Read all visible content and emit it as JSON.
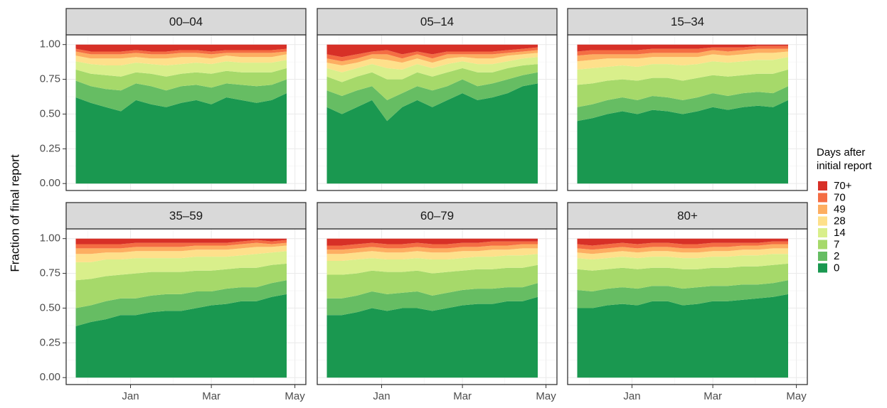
{
  "chart_data": {
    "type": "area",
    "stacked": true,
    "y_label": "Fraction of final report",
    "legend_title": "Days after initial report",
    "legend_position": "right",
    "grid": true,
    "series": [
      {
        "name": "0",
        "color": "#1a9850"
      },
      {
        "name": "2",
        "color": "#66bd63"
      },
      {
        "name": "7",
        "color": "#a6d96a"
      },
      {
        "name": "14",
        "color": "#d9ef8b"
      },
      {
        "name": "28",
        "color": "#fee08b"
      },
      {
        "name": "49",
        "color": "#fdae61"
      },
      {
        "name": "70",
        "color": "#f46d43"
      },
      {
        "name": "70+",
        "color": "#d73027"
      }
    ],
    "x": [
      -40,
      -29,
      -18,
      -7,
      4,
      15,
      26,
      37,
      48,
      59,
      70,
      81,
      92,
      103,
      114
    ],
    "xlim": [
      -47,
      128
    ],
    "xticks": [
      {
        "value": 0,
        "label": "Jan"
      },
      {
        "value": 59,
        "label": "Mar"
      },
      {
        "value": 120,
        "label": "May"
      }
    ],
    "xminor": [
      -31,
      31,
      90
    ],
    "ylim": [
      -0.05,
      1.07
    ],
    "yticks": [
      {
        "value": 0,
        "label": "0.00"
      },
      {
        "value": 0.25,
        "label": "0.25"
      },
      {
        "value": 0.5,
        "label": "0.50"
      },
      {
        "value": 0.75,
        "label": "0.75"
      },
      {
        "value": 1,
        "label": "1.00"
      }
    ],
    "yminor": [
      0.125,
      0.375,
      0.625,
      0.875
    ],
    "panels": [
      {
        "title": "00–04",
        "values": [
          [
            0.62,
            0.58,
            0.55,
            0.52,
            0.6,
            0.57,
            0.55,
            0.58,
            0.6,
            0.57,
            0.62,
            0.6,
            0.58,
            0.6,
            0.65
          ],
          [
            0.12,
            0.12,
            0.13,
            0.15,
            0.12,
            0.13,
            0.12,
            0.12,
            0.11,
            0.12,
            0.1,
            0.11,
            0.12,
            0.11,
            0.1
          ],
          [
            0.08,
            0.09,
            0.1,
            0.1,
            0.08,
            0.09,
            0.1,
            0.09,
            0.09,
            0.1,
            0.09,
            0.09,
            0.1,
            0.09,
            0.08
          ],
          [
            0.06,
            0.07,
            0.07,
            0.08,
            0.07,
            0.07,
            0.08,
            0.07,
            0.07,
            0.07,
            0.07,
            0.07,
            0.07,
            0.07,
            0.06
          ],
          [
            0.04,
            0.04,
            0.05,
            0.05,
            0.04,
            0.04,
            0.05,
            0.05,
            0.04,
            0.04,
            0.04,
            0.04,
            0.04,
            0.04,
            0.04
          ],
          [
            0.03,
            0.03,
            0.03,
            0.03,
            0.03,
            0.03,
            0.03,
            0.03,
            0.03,
            0.03,
            0.02,
            0.03,
            0.03,
            0.03,
            0.02
          ],
          [
            0.02,
            0.02,
            0.02,
            0.02,
            0.02,
            0.02,
            0.02,
            0.02,
            0.02,
            0.02,
            0.02,
            0.02,
            0.02,
            0.02,
            0.02
          ],
          [
            0.03,
            0.05,
            0.05,
            0.05,
            0.04,
            0.05,
            0.05,
            0.04,
            0.04,
            0.05,
            0.04,
            0.04,
            0.04,
            0.04,
            0.03
          ]
        ]
      },
      {
        "title": "05–14",
        "values": [
          [
            0.55,
            0.5,
            0.55,
            0.6,
            0.45,
            0.55,
            0.6,
            0.55,
            0.6,
            0.65,
            0.6,
            0.62,
            0.65,
            0.7,
            0.72
          ],
          [
            0.12,
            0.13,
            0.12,
            0.1,
            0.15,
            0.1,
            0.1,
            0.12,
            0.1,
            0.1,
            0.1,
            0.1,
            0.1,
            0.08,
            0.08
          ],
          [
            0.1,
            0.1,
            0.1,
            0.1,
            0.15,
            0.1,
            0.1,
            0.1,
            0.1,
            0.08,
            0.1,
            0.08,
            0.08,
            0.07,
            0.06
          ],
          [
            0.06,
            0.07,
            0.06,
            0.06,
            0.08,
            0.07,
            0.06,
            0.06,
            0.06,
            0.05,
            0.06,
            0.06,
            0.05,
            0.05,
            0.05
          ],
          [
            0.04,
            0.05,
            0.04,
            0.04,
            0.06,
            0.05,
            0.04,
            0.04,
            0.04,
            0.03,
            0.04,
            0.04,
            0.04,
            0.03,
            0.03
          ],
          [
            0.03,
            0.03,
            0.03,
            0.03,
            0.04,
            0.03,
            0.03,
            0.03,
            0.03,
            0.02,
            0.03,
            0.03,
            0.02,
            0.02,
            0.02
          ],
          [
            0.03,
            0.03,
            0.03,
            0.02,
            0.03,
            0.03,
            0.02,
            0.03,
            0.02,
            0.02,
            0.02,
            0.02,
            0.02,
            0.02,
            0.02
          ],
          [
            0.07,
            0.09,
            0.07,
            0.05,
            0.04,
            0.07,
            0.05,
            0.07,
            0.05,
            0.05,
            0.05,
            0.05,
            0.04,
            0.03,
            0.02
          ]
        ]
      },
      {
        "title": "15–34",
        "values": [
          [
            0.45,
            0.47,
            0.5,
            0.52,
            0.5,
            0.53,
            0.52,
            0.5,
            0.52,
            0.55,
            0.53,
            0.55,
            0.56,
            0.55,
            0.6
          ],
          [
            0.1,
            0.1,
            0.1,
            0.1,
            0.1,
            0.1,
            0.1,
            0.1,
            0.1,
            0.1,
            0.1,
            0.1,
            0.1,
            0.1,
            0.1
          ],
          [
            0.16,
            0.15,
            0.14,
            0.13,
            0.14,
            0.13,
            0.14,
            0.14,
            0.14,
            0.13,
            0.14,
            0.13,
            0.13,
            0.14,
            0.12
          ],
          [
            0.11,
            0.11,
            0.1,
            0.1,
            0.1,
            0.1,
            0.1,
            0.11,
            0.1,
            0.1,
            0.1,
            0.1,
            0.1,
            0.1,
            0.09
          ],
          [
            0.06,
            0.06,
            0.06,
            0.05,
            0.06,
            0.05,
            0.05,
            0.06,
            0.05,
            0.05,
            0.05,
            0.05,
            0.05,
            0.05,
            0.04
          ],
          [
            0.04,
            0.04,
            0.03,
            0.03,
            0.03,
            0.03,
            0.03,
            0.03,
            0.03,
            0.03,
            0.03,
            0.03,
            0.03,
            0.03,
            0.02
          ],
          [
            0.03,
            0.03,
            0.03,
            0.03,
            0.03,
            0.03,
            0.03,
            0.03,
            0.03,
            0.02,
            0.03,
            0.02,
            0.02,
            0.02,
            0.02
          ],
          [
            0.05,
            0.04,
            0.04,
            0.04,
            0.04,
            0.03,
            0.03,
            0.03,
            0.03,
            0.02,
            0.02,
            0.02,
            0.01,
            0.01,
            0.01
          ]
        ]
      },
      {
        "title": "35–59",
        "values": [
          [
            0.37,
            0.4,
            0.42,
            0.45,
            0.45,
            0.47,
            0.48,
            0.48,
            0.5,
            0.52,
            0.53,
            0.55,
            0.55,
            0.58,
            0.6
          ],
          [
            0.13,
            0.12,
            0.13,
            0.12,
            0.12,
            0.12,
            0.12,
            0.12,
            0.12,
            0.1,
            0.11,
            0.1,
            0.1,
            0.1,
            0.1
          ],
          [
            0.2,
            0.19,
            0.18,
            0.17,
            0.18,
            0.17,
            0.16,
            0.16,
            0.15,
            0.15,
            0.14,
            0.14,
            0.14,
            0.13,
            0.12
          ],
          [
            0.13,
            0.12,
            0.12,
            0.11,
            0.11,
            0.1,
            0.1,
            0.1,
            0.1,
            0.1,
            0.09,
            0.09,
            0.1,
            0.09,
            0.09
          ],
          [
            0.06,
            0.06,
            0.05,
            0.05,
            0.05,
            0.05,
            0.05,
            0.05,
            0.05,
            0.05,
            0.05,
            0.05,
            0.05,
            0.04,
            0.04
          ],
          [
            0.04,
            0.04,
            0.03,
            0.03,
            0.03,
            0.03,
            0.03,
            0.03,
            0.03,
            0.03,
            0.03,
            0.03,
            0.03,
            0.02,
            0.02
          ],
          [
            0.03,
            0.03,
            0.03,
            0.03,
            0.03,
            0.03,
            0.03,
            0.03,
            0.02,
            0.02,
            0.02,
            0.02,
            0.02,
            0.02,
            0.02
          ],
          [
            0.04,
            0.04,
            0.04,
            0.04,
            0.03,
            0.03,
            0.03,
            0.03,
            0.03,
            0.03,
            0.03,
            0.02,
            0.01,
            0.02,
            0.01
          ]
        ]
      },
      {
        "title": "60–79",
        "values": [
          [
            0.45,
            0.45,
            0.47,
            0.5,
            0.48,
            0.5,
            0.5,
            0.48,
            0.5,
            0.52,
            0.53,
            0.53,
            0.55,
            0.55,
            0.58
          ],
          [
            0.12,
            0.12,
            0.12,
            0.12,
            0.12,
            0.11,
            0.12,
            0.11,
            0.11,
            0.11,
            0.11,
            0.11,
            0.1,
            0.1,
            0.1
          ],
          [
            0.17,
            0.17,
            0.16,
            0.15,
            0.16,
            0.15,
            0.15,
            0.16,
            0.15,
            0.14,
            0.14,
            0.14,
            0.14,
            0.14,
            0.13
          ],
          [
            0.1,
            0.1,
            0.1,
            0.09,
            0.09,
            0.09,
            0.09,
            0.1,
            0.09,
            0.09,
            0.09,
            0.09,
            0.09,
            0.09,
            0.08
          ],
          [
            0.05,
            0.05,
            0.05,
            0.05,
            0.05,
            0.05,
            0.05,
            0.05,
            0.05,
            0.05,
            0.04,
            0.05,
            0.04,
            0.05,
            0.04
          ],
          [
            0.03,
            0.03,
            0.03,
            0.03,
            0.03,
            0.03,
            0.03,
            0.03,
            0.03,
            0.03,
            0.03,
            0.03,
            0.03,
            0.03,
            0.03
          ],
          [
            0.03,
            0.03,
            0.03,
            0.03,
            0.03,
            0.03,
            0.03,
            0.03,
            0.03,
            0.03,
            0.03,
            0.03,
            0.03,
            0.02,
            0.02
          ],
          [
            0.05,
            0.05,
            0.04,
            0.03,
            0.04,
            0.04,
            0.03,
            0.04,
            0.04,
            0.03,
            0.03,
            0.02,
            0.02,
            0.02,
            0.02
          ]
        ]
      },
      {
        "title": "80+",
        "values": [
          [
            0.5,
            0.5,
            0.52,
            0.53,
            0.52,
            0.55,
            0.55,
            0.52,
            0.53,
            0.55,
            0.55,
            0.56,
            0.57,
            0.58,
            0.6
          ],
          [
            0.13,
            0.12,
            0.12,
            0.12,
            0.12,
            0.11,
            0.11,
            0.12,
            0.12,
            0.11,
            0.11,
            0.11,
            0.1,
            0.1,
            0.1
          ],
          [
            0.15,
            0.15,
            0.14,
            0.14,
            0.14,
            0.13,
            0.13,
            0.14,
            0.13,
            0.13,
            0.13,
            0.13,
            0.13,
            0.13,
            0.12
          ],
          [
            0.08,
            0.08,
            0.08,
            0.08,
            0.08,
            0.08,
            0.08,
            0.08,
            0.08,
            0.08,
            0.08,
            0.08,
            0.08,
            0.08,
            0.07
          ],
          [
            0.04,
            0.04,
            0.04,
            0.04,
            0.04,
            0.04,
            0.04,
            0.04,
            0.04,
            0.04,
            0.04,
            0.04,
            0.04,
            0.04,
            0.04
          ],
          [
            0.03,
            0.03,
            0.03,
            0.03,
            0.03,
            0.03,
            0.03,
            0.03,
            0.03,
            0.03,
            0.03,
            0.03,
            0.03,
            0.03,
            0.03
          ],
          [
            0.03,
            0.03,
            0.03,
            0.03,
            0.03,
            0.03,
            0.03,
            0.03,
            0.03,
            0.03,
            0.03,
            0.02,
            0.02,
            0.02,
            0.02
          ],
          [
            0.04,
            0.05,
            0.04,
            0.03,
            0.04,
            0.03,
            0.03,
            0.04,
            0.04,
            0.03,
            0.03,
            0.03,
            0.03,
            0.02,
            0.02
          ]
        ]
      }
    ]
  }
}
